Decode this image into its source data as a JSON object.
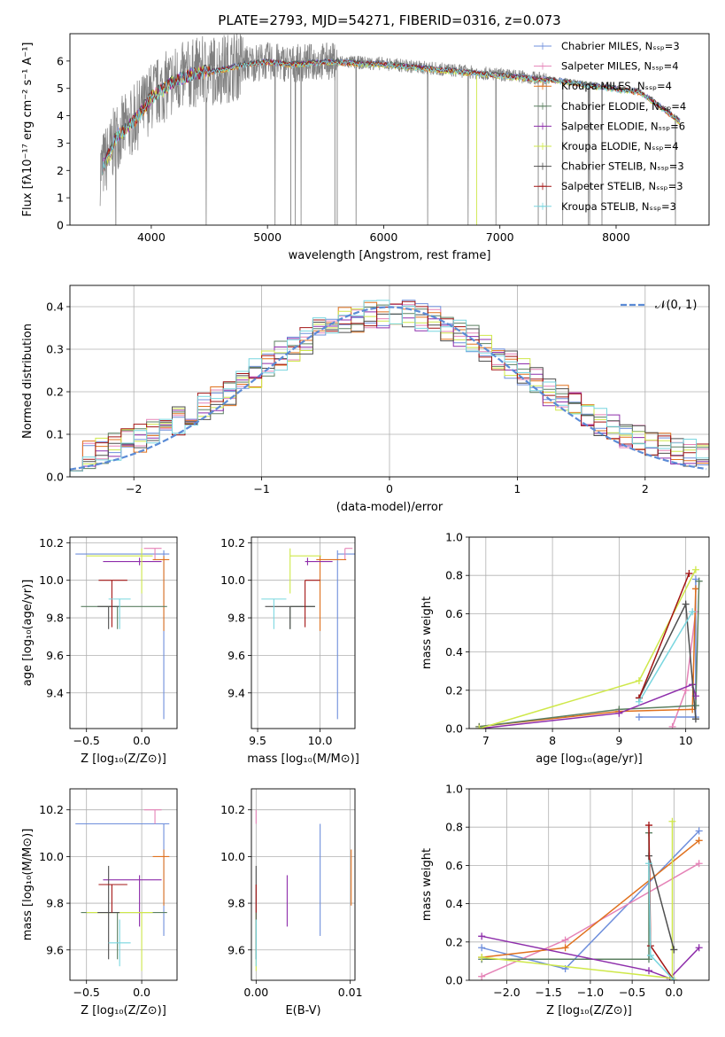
{
  "title": "PLATE=2793, MJD=54271, FIBERID=0316, z=0.073",
  "colors": {
    "Chabrier MILES": "#6f8fdc",
    "Salpeter MILES": "#e583b7",
    "Kroupa MILES": "#e0711e",
    "Chabrier ELODIE": "#5c8062",
    "Salpeter ELODIE": "#8e2eab",
    "Kroupa ELODIE": "#cfe84a",
    "Chabrier STELIB": "#4f4f4f",
    "Salpeter STELIB": "#a31414",
    "Kroupa STELIB": "#79d6df",
    "gauss": "#5b8bd6",
    "spectrum": "#808080"
  },
  "chart_data": [
    {
      "type": "line",
      "id": "spectrum",
      "xlabel": "wavelength [Angstrom, rest frame]",
      "ylabel": "Flux [fλ10⁻¹⁷ erg cm⁻² s⁻¹ A⁻¹]",
      "xlim": [
        3300,
        8800
      ],
      "ylim": [
        0,
        7
      ],
      "xticks": [
        "4000",
        "5000",
        "6000",
        "7000",
        "8000"
      ],
      "yticks": [
        "0",
        "1",
        "2",
        "3",
        "4",
        "5",
        "6"
      ],
      "legend": [
        "Chabrier MILES, Nₛₛₚ=3",
        "Salpeter MILES, Nₛₛₚ=4",
        "Kroupa MILES, Nₛₛₚ=4",
        "Chabrier ELODIE, Nₛₛₚ=4",
        "Salpeter ELODIE, Nₛₛₚ=6",
        "Kroupa ELODIE, Nₛₛₚ=4",
        "Chabrier STELIB, Nₛₛₚ=3",
        "Salpeter STELIB, Nₛₛₚ=3",
        "Kroupa STELIB, Nₛₛₚ=3"
      ],
      "continuum": [
        [
          3560,
          2.0
        ],
        [
          3650,
          2.7
        ],
        [
          3700,
          3.3
        ],
        [
          3800,
          3.6
        ],
        [
          3900,
          4.1
        ],
        [
          4000,
          4.7
        ],
        [
          4200,
          5.3
        ],
        [
          4400,
          5.6
        ],
        [
          4600,
          5.7
        ],
        [
          4800,
          5.9
        ],
        [
          5000,
          6.0
        ],
        [
          5200,
          5.9
        ],
        [
          5500,
          6.0
        ],
        [
          6000,
          5.9
        ],
        [
          6500,
          5.7
        ],
        [
          7000,
          5.5
        ],
        [
          7500,
          5.3
        ],
        [
          8000,
          5.0
        ],
        [
          8200,
          4.9
        ],
        [
          8400,
          4.3
        ],
        [
          8550,
          3.8
        ]
      ]
    },
    {
      "type": "line",
      "id": "residuals",
      "xlabel": "(data-model)/error",
      "ylabel": "Normed distribution",
      "xlim": [
        -2.5,
        2.5
      ],
      "ylim": [
        0,
        0.45
      ],
      "xticks": [
        "−2",
        "−1",
        "0",
        "1",
        "2"
      ],
      "yticks": [
        "0.0",
        "0.1",
        "0.2",
        "0.3",
        "0.4"
      ],
      "legend": "𝒩(0, 1)"
    },
    {
      "type": "scatter",
      "id": "age-vs-Z",
      "xlabel": "Z [log₁₀(Z/Z⊙)]",
      "ylabel": "age  [log₁₀(age/yr)]",
      "xlim": [
        -0.65,
        0.32
      ],
      "ylim": [
        9.21,
        10.23
      ],
      "xticks": [
        "−0.5",
        "0.0"
      ],
      "yticks": [
        "9.4",
        "9.6",
        "9.8",
        "10.0",
        "10.2"
      ]
    },
    {
      "type": "scatter",
      "id": "age-vs-mass",
      "xlabel": "mass [log₁₀(M/M⊙)]",
      "yticks": [
        "9.4",
        "9.6",
        "9.8",
        "10.0",
        "10.2"
      ],
      "xlim": [
        9.45,
        10.28
      ],
      "ylim": [
        9.21,
        10.23
      ],
      "xticks": [
        "9.5",
        "10.0"
      ]
    },
    {
      "type": "line",
      "id": "mass-weight-vs-age",
      "xlabel": "age  [log₁₀(age/yr)]",
      "ylabel": "mass weight",
      "xlim": [
        6.75,
        10.35
      ],
      "ylim": [
        0,
        1
      ],
      "xticks": [
        "7",
        "8",
        "9",
        "10"
      ],
      "yticks": [
        "0.0",
        "0.2",
        "0.4",
        "0.6",
        "0.8",
        "1.0"
      ]
    },
    {
      "type": "scatter",
      "id": "mass-vs-Z",
      "xlabel": "Z [log₁₀(Z/Z⊙)]",
      "ylabel": "mass [log₁₀(M/M⊙)]",
      "xlim": [
        -0.65,
        0.32
      ],
      "ylim": [
        9.47,
        10.29
      ],
      "xticks": [
        "−0.5",
        "0.0"
      ],
      "yticks": [
        "9.6",
        "9.8",
        "10.0",
        "10.2"
      ]
    },
    {
      "type": "scatter",
      "id": "mass-vs-EBV",
      "xlabel": "E(B-V)",
      "xlim": [
        -0.0005,
        0.0105
      ],
      "ylim": [
        9.47,
        10.29
      ],
      "xticks": [
        "0.00",
        "0.01"
      ],
      "yticks": [
        "9.6",
        "9.8",
        "10.0",
        "10.2"
      ]
    },
    {
      "type": "line",
      "id": "mass-weight-vs-Z",
      "xlabel": "Z [log₁₀(Z/Z⊙)]",
      "ylabel": "mass weight",
      "xlim": [
        -2.45,
        0.42
      ],
      "ylim": [
        0,
        1
      ],
      "xticks": [
        "−2.0",
        "−1.5",
        "−1.0",
        "−0.5",
        "0.0"
      ],
      "yticks": [
        "0.0",
        "0.2",
        "0.4",
        "0.6",
        "0.8",
        "1.0"
      ]
    }
  ],
  "models": [
    {
      "name": "Chabrier MILES",
      "age": 10.14,
      "age_err": [
        0.02,
        0.88
      ],
      "Z": 0.2,
      "Z_err": [
        0.8,
        0.05
      ],
      "mass": 10.14,
      "mass_err": [
        0.0,
        0.48
      ],
      "ebv": 0.0068,
      "ebv_err": 0.015,
      "mw_age": [
        [
          9.3,
          0.06
        ],
        [
          10.15,
          0.06
        ],
        [
          10.15,
          0.78
        ]
      ],
      "mw_Z": [
        [
          -2.3,
          0.17
        ],
        [
          -1.3,
          0.06
        ],
        [
          0.3,
          0.78
        ]
      ]
    },
    {
      "name": "Salpeter MILES",
      "age": 10.17,
      "age_err": [
        0.0,
        0.06
      ],
      "Z": 0.12,
      "Z_err": [
        0.1,
        0.06
      ],
      "mass": 10.2,
      "mass_err": [
        0.0,
        0.06
      ],
      "ebv": 0.0,
      "ebv_err": 0.02,
      "mw_age": [
        [
          9.8,
          0.01
        ],
        [
          10.0,
          0.2
        ],
        [
          10.15,
          0.61
        ]
      ],
      "mw_Z": [
        [
          -2.3,
          0.02
        ],
        [
          -1.3,
          0.21
        ],
        [
          0.3,
          0.61
        ]
      ]
    },
    {
      "name": "Kroupa MILES",
      "age": 10.11,
      "age_err": [
        0.02,
        0.38
      ],
      "Z": 0.2,
      "Z_err": [
        0.1,
        0.05
      ],
      "mass": 10.0,
      "mass_err": [
        0.03,
        0.21
      ],
      "ebv": 0.0101,
      "ebv_err": 0.025,
      "mw_age": [
        [
          6.9,
          0.01
        ],
        [
          9.0,
          0.09
        ],
        [
          10.1,
          0.1
        ],
        [
          10.15,
          0.73
        ]
      ],
      "mw_Z": [
        [
          -2.3,
          0.12
        ],
        [
          -1.3,
          0.17
        ],
        [
          0.3,
          0.73
        ]
      ]
    },
    {
      "name": "Chabrier ELODIE",
      "age": 9.86,
      "age_err": [
        0.0,
        0.12
      ],
      "Z": -0.22,
      "Z_err": [
        0.33,
        0.45
      ],
      "mass": 9.76,
      "mass_err": [
        0.0,
        0.2
      ],
      "ebv": 0.0,
      "ebv_err": 0.025,
      "mw_age": [
        [
          6.9,
          0.01
        ],
        [
          9.0,
          0.1
        ],
        [
          10.15,
          0.12
        ],
        [
          10.2,
          0.77
        ]
      ],
      "mw_Z": [
        [
          -2.3,
          0.11
        ],
        [
          -0.3,
          0.11
        ],
        [
          -0.3,
          0.77
        ]
      ]
    },
    {
      "name": "Salpeter ELODIE",
      "age": 10.1,
      "age_err": [
        0.02,
        0.02
      ],
      "Z": -0.02,
      "Z_err": [
        0.33,
        0.2
      ],
      "mass": 9.9,
      "mass_err": [
        0.02,
        0.2
      ],
      "ebv": 0.0033,
      "ebv_err": 0.018,
      "mw_age": [
        [
          6.9,
          0.0
        ],
        [
          9.0,
          0.08
        ],
        [
          10.1,
          0.23
        ],
        [
          10.15,
          0.17
        ]
      ],
      "mw_Z": [
        [
          -2.3,
          0.23
        ],
        [
          -0.3,
          0.05
        ],
        [
          -0.05,
          0.01
        ],
        [
          0.3,
          0.17
        ]
      ]
    },
    {
      "name": "Kroupa ELODIE",
      "age": 10.13,
      "age_err": [
        0.04,
        0.2
      ],
      "Z": 0.0,
      "Z_err": [
        0.5,
        0.1
      ],
      "mass": 9.76,
      "mass_err": [
        0.0,
        0.25
      ],
      "ebv": 0.0,
      "ebv_err": 0.02,
      "mw_age": [
        [
          6.9,
          0.0
        ],
        [
          9.3,
          0.25
        ],
        [
          10.15,
          0.83
        ]
      ],
      "mw_Z": [
        [
          -2.3,
          0.12
        ],
        [
          -0.02,
          0.01
        ],
        [
          -0.02,
          0.83
        ]
      ]
    },
    {
      "name": "Chabrier STELIB",
      "age": 9.86,
      "age_err": [
        0.0,
        0.12
      ],
      "Z": -0.3,
      "Z_err": [
        0.1,
        0.1
      ],
      "mass": 9.76,
      "mass_err": [
        0.2,
        0.2
      ],
      "ebv": 0.0,
      "ebv_err": 0.02,
      "mw_age": [
        [
          9.3,
          0.16
        ],
        [
          10.0,
          0.65
        ],
        [
          10.15,
          0.05
        ]
      ],
      "mw_Z": [
        [
          -0.3,
          0.65
        ],
        [
          0.0,
          0.16
        ]
      ]
    },
    {
      "name": "Salpeter STELIB",
      "age": 10.0,
      "age_err": [
        0.0,
        0.25
      ],
      "Z": -0.27,
      "Z_err": [
        0.12,
        0.14
      ],
      "mass": 9.88,
      "mass_err": [
        0.0,
        0.12
      ],
      "ebv": 0.0,
      "ebv_err": 0.018,
      "mw_age": [
        [
          9.3,
          0.16
        ],
        [
          10.05,
          0.81
        ]
      ],
      "mw_Z": [
        [
          -0.3,
          0.81
        ],
        [
          -0.28,
          0.18
        ],
        [
          0.0,
          0.0
        ]
      ]
    },
    {
      "name": "Kroupa STELIB",
      "age": 9.9,
      "age_err": [
        0.0,
        0.16
      ],
      "Z": -0.2,
      "Z_err": [
        0.1,
        0.1
      ],
      "mass": 9.63,
      "mass_err": [
        0.1,
        0.1
      ],
      "ebv": 0.0,
      "ebv_err": 0.02,
      "mw_age": [
        [
          9.3,
          0.14
        ],
        [
          10.1,
          0.61
        ]
      ],
      "mw_Z": [
        [
          -0.3,
          0.61
        ],
        [
          -0.28,
          0.13
        ],
        [
          0.0,
          0.0
        ]
      ]
    }
  ]
}
